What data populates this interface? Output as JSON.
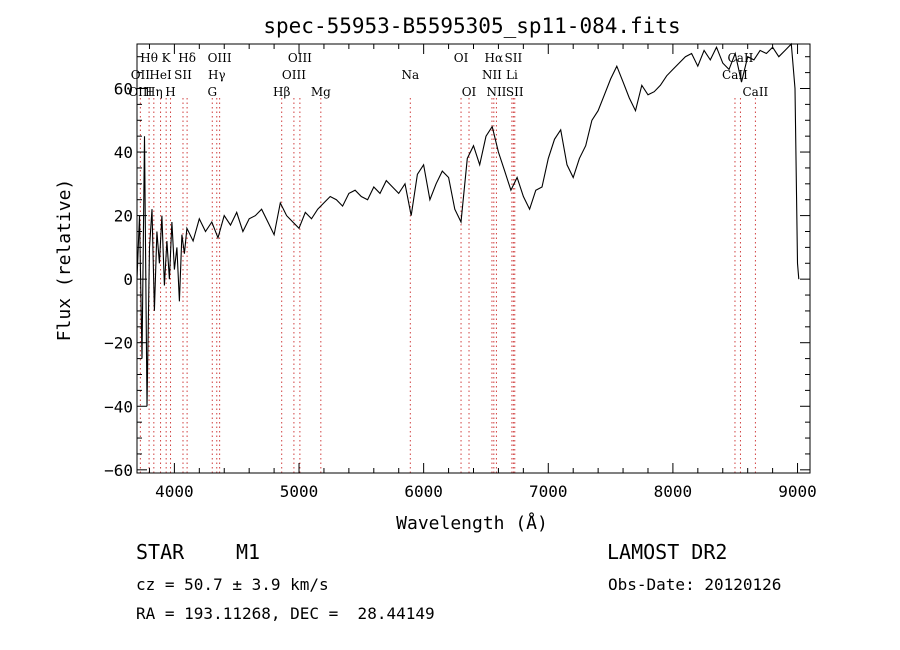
{
  "chart_data": {
    "type": "line",
    "title": "spec-55953-B5595305_sp11-084.fits",
    "xlabel": "Wavelength (Å)",
    "ylabel": "Flux (relative)",
    "xlim": [
      3700,
      9100
    ],
    "ylim": [
      -61,
      74
    ],
    "x_ticks": [
      4000,
      5000,
      6000,
      7000,
      8000,
      9000
    ],
    "y_ticks": [
      -60,
      -40,
      -20,
      0,
      20,
      40,
      60
    ],
    "grid": false,
    "series": [
      {
        "x": [
          3700,
          3720,
          3740,
          3760,
          3780,
          3800,
          3820,
          3840,
          3860,
          3880,
          3900,
          3920,
          3940,
          3960,
          3980,
          4000,
          4020,
          4040,
          4060,
          4080,
          4100,
          4150,
          4200,
          4250,
          4300,
          4350,
          4400,
          4450,
          4500,
          4550,
          4600,
          4650,
          4700,
          4750,
          4800,
          4850,
          4900,
          4950,
          5000,
          5050,
          5100,
          5150,
          5200,
          5250,
          5300,
          5350,
          5400,
          5450,
          5500,
          5550,
          5600,
          5650,
          5700,
          5750,
          5800,
          5850,
          5900,
          5950,
          6000,
          6050,
          6100,
          6150,
          6200,
          6250,
          6300,
          6350,
          6400,
          6450,
          6500,
          6550,
          6600,
          6650,
          6700,
          6750,
          6800,
          6850,
          6900,
          6950,
          7000,
          7050,
          7100,
          7150,
          7200,
          7250,
          7300,
          7350,
          7400,
          7450,
          7500,
          7550,
          7600,
          7650,
          7700,
          7750,
          7800,
          7850,
          7900,
          7950,
          8000,
          8050,
          8100,
          8150,
          8200,
          8250,
          8300,
          8350,
          8400,
          8450,
          8500,
          8550,
          8600,
          8650,
          8700,
          8750,
          8800,
          8850,
          8900,
          8950,
          8980,
          9000,
          9010
        ],
        "y": [
          0,
          20,
          -25,
          45,
          -40,
          10,
          22,
          -10,
          15,
          5,
          20,
          -2,
          12,
          0,
          18,
          3,
          10,
          -7,
          14,
          8,
          16,
          12,
          19,
          15,
          18,
          13,
          20,
          17,
          21,
          15,
          19,
          20,
          22,
          18,
          14,
          24,
          20,
          18,
          16,
          21,
          19,
          22,
          24,
          26,
          25,
          23,
          27,
          28,
          26,
          25,
          29,
          27,
          31,
          29,
          27,
          30,
          20,
          33,
          36,
          25,
          30,
          34,
          32,
          22,
          18,
          38,
          42,
          36,
          45,
          48,
          40,
          34,
          28,
          32,
          26,
          22,
          28,
          29,
          38,
          44,
          47,
          36,
          32,
          38,
          42,
          50,
          53,
          58,
          63,
          67,
          62,
          57,
          53,
          61,
          58,
          59,
          61,
          64,
          66,
          68,
          70,
          71,
          67,
          72,
          69,
          73,
          68,
          66,
          71,
          62,
          70,
          69,
          72,
          71,
          73,
          70,
          72,
          74,
          60,
          5,
          0
        ]
      }
    ],
    "line_labels": [
      {
        "text": "Hθ",
        "w": 3797,
        "row": 1
      },
      {
        "text": "OII",
        "w": 3727,
        "row": 2
      },
      {
        "text": "OIII",
        "w": 3727,
        "row": 3
      },
      {
        "text": "K",
        "w": 3934,
        "row": 1
      },
      {
        "text": "HeI",
        "w": 3889,
        "row": 2
      },
      {
        "text": "Hη",
        "w": 3835,
        "row": 3
      },
      {
        "text": "SII",
        "w": 4069,
        "row": 2
      },
      {
        "text": "H",
        "w": 3969,
        "row": 3
      },
      {
        "text": "Hδ",
        "w": 4102,
        "row": 1
      },
      {
        "text": "OIII",
        "w": 4363,
        "row": 1
      },
      {
        "text": "Hγ",
        "w": 4340,
        "row": 2
      },
      {
        "text": "G",
        "w": 4304,
        "row": 3
      },
      {
        "text": "OIII",
        "w": 5007,
        "row": 1
      },
      {
        "text": "OIII",
        "w": 4959,
        "row": 2
      },
      {
        "text": "Hβ",
        "w": 4861,
        "row": 3
      },
      {
        "text": "Mg",
        "w": 5175,
        "row": 3
      },
      {
        "text": "Na",
        "w": 5893,
        "row": 2
      },
      {
        "text": "OI",
        "w": 6300,
        "row": 1
      },
      {
        "text": "OI",
        "w": 6364,
        "row": 3
      },
      {
        "text": "Hα",
        "w": 6563,
        "row": 1
      },
      {
        "text": "SII",
        "w": 6720,
        "row": 1
      },
      {
        "text": "NII",
        "w": 6548,
        "row": 2
      },
      {
        "text": "Li",
        "w": 6708,
        "row": 2
      },
      {
        "text": "NII",
        "w": 6584,
        "row": 3
      },
      {
        "text": "SII",
        "w": 6731,
        "row": 3
      },
      {
        "text": "CaII",
        "w": 8542,
        "row": 1
      },
      {
        "text": "CaII",
        "w": 8498,
        "row": 2
      },
      {
        "text": "CaII",
        "w": 8662,
        "row": 3
      }
    ],
    "line_markers": [
      3727,
      3797,
      3835,
      3889,
      3934,
      3969,
      4069,
      4102,
      4304,
      4340,
      4363,
      4861,
      4959,
      5007,
      5175,
      5893,
      6300,
      6364,
      6548,
      6563,
      6584,
      6708,
      6720,
      6731,
      8498,
      8542,
      8662
    ]
  },
  "info": {
    "class_label": "STAR",
    "subclass_label": "M1",
    "cz_text": "cz = 50.7 ± 3.9 km/s",
    "coords_text": "RA = 193.11268, DEC =  28.44149",
    "survey_label": "LAMOST DR2",
    "obs_date_text": "Obs-Date: 20120126"
  },
  "colors": {
    "spectrum": "#000000",
    "line_marker": "#d04040",
    "axis": "#000000"
  }
}
